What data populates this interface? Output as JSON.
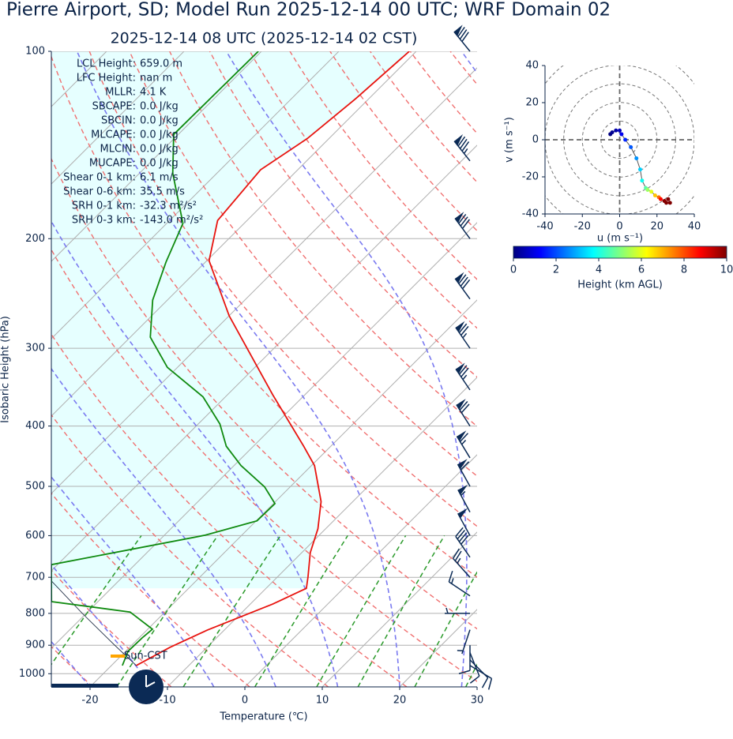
{
  "title": "Pierre Airport, SD; Model Run 2025-12-14 00 UTC; WRF Domain 02",
  "chart_data": [
    {
      "type": "skewt",
      "subtitle": "2025-12-14 08 UTC  (2025-12-14 02 CST)",
      "x_label": "Temperature (℃)",
      "y_label": "Isobaric Height (hPa)",
      "xlim": [
        -25,
        30
      ],
      "xticks": [
        -20,
        -10,
        0,
        10,
        20,
        30
      ],
      "ylim": [
        1050,
        100
      ],
      "yticks": [
        100,
        200,
        300,
        400,
        500,
        600,
        700,
        800,
        900,
        1000
      ],
      "yscale": "log",
      "grid": true,
      "temperature": {
        "color": "#e8140f",
        "pressure": [
          970,
          907,
          851,
          773,
          729,
          698,
          639,
          585,
          529,
          463,
          431,
          356,
          266,
          217,
          187,
          155,
          138,
          119,
          100
        ],
        "values": [
          -16.8,
          -14.8,
          -12.2,
          -7.1,
          -4.8,
          -6.1,
          -8.9,
          -11.0,
          -14.1,
          -19.6,
          -23.5,
          -34.2,
          -50.0,
          -59.7,
          -63.8,
          -64.8,
          -62.8,
          -61.7,
          -60.9
        ]
      },
      "dewpoint": {
        "color": "#0f8a0f",
        "pressure": [
          970,
          920,
          876,
          848,
          796,
          766,
          668,
          599,
          568,
          533,
          501,
          463,
          431,
          397,
          359,
          322,
          288,
          251,
          218,
          189,
          157,
          136,
          100
        ],
        "values": [
          -18.6,
          -19.7,
          -19.6,
          -19.4,
          -24.5,
          -36.0,
          -40.8,
          -24.7,
          -19.9,
          -19.8,
          -23.3,
          -29.1,
          -33.5,
          -37.2,
          -42.9,
          -51.3,
          -57.4,
          -61.9,
          -65.1,
          -67.9,
          -75.7,
          -80.6,
          -80.4
        ]
      },
      "parcel": {
        "color": "#0b1a33",
        "pressure": [
          970,
          900,
          800,
          700
        ],
        "values": [
          -16.8,
          -22.2,
          -30.5,
          -39.6
        ]
      },
      "wind": {
        "color": "#0b2a55",
        "pressure": [
          970,
          950,
          925,
          900,
          850,
          800,
          750,
          700,
          650,
          600,
          550,
          500,
          450,
          400,
          350,
          300,
          250,
          200,
          150,
          100
        ],
        "u": [
          -5,
          -4,
          -2,
          0,
          1,
          3,
          6,
          9,
          11,
          12,
          14,
          15,
          17,
          19,
          21,
          22,
          24,
          25,
          27,
          26
        ],
        "v": [
          3,
          4,
          5,
          5,
          3,
          0,
          -4,
          -10,
          -16,
          -22,
          -26,
          -27,
          -28,
          -30,
          -31,
          -32,
          -33,
          -34,
          -34,
          -32
        ],
        "height_km": [
          0,
          0.2,
          0.4,
          0.6,
          1.1,
          1.6,
          2.1,
          2.7,
          3.3,
          3.9,
          4.6,
          5.3,
          6.0,
          6.8,
          7.7,
          8.7,
          9.9,
          11.3,
          13.2,
          15.9
        ]
      },
      "stats": [
        {
          "label": "LCL Height:",
          "value": "659.0 m"
        },
        {
          "label": "LFC Height:",
          "value": "nan m"
        },
        {
          "label": "MLLR:",
          "value": "4.1 K"
        },
        {
          "label": "SBCAPE:",
          "value": "0.0 J/kg"
        },
        {
          "label": "SBCIN:",
          "value": "0.0 J/kg"
        },
        {
          "label": "MLCAPE:",
          "value": "0.0 J/kg"
        },
        {
          "label": "MLCIN:",
          "value": "0.0 J/kg"
        },
        {
          "label": "MUCAPE:",
          "value": "0.0 J/kg"
        },
        {
          "label": "Shear 0-1 km:",
          "value": "6.1 m/s"
        },
        {
          "label": "Shear 0-6 km:",
          "value": "35.5 m/s"
        },
        {
          "label": "SRH 0-1 km:",
          "value": "-32.3 m²/s²"
        },
        {
          "label": "SRH 0-3 km:",
          "value": "-143.0 m²/s²"
        }
      ],
      "sun_label": "Sun-CST"
    },
    {
      "type": "hodograph",
      "x_label": "u (m s⁻¹)",
      "y_label": "v (m s⁻¹)",
      "xlim": [
        -40,
        40
      ],
      "ylim": [
        -40,
        40
      ],
      "xticks": [
        -40,
        -20,
        0,
        20,
        40
      ],
      "yticks": [
        -40,
        -20,
        0,
        20,
        40
      ]
    },
    {
      "type": "colorbar",
      "label": "Height (km AGL)",
      "lim": [
        0,
        10
      ],
      "ticks": [
        0,
        2,
        4,
        6,
        8,
        10
      ]
    }
  ]
}
